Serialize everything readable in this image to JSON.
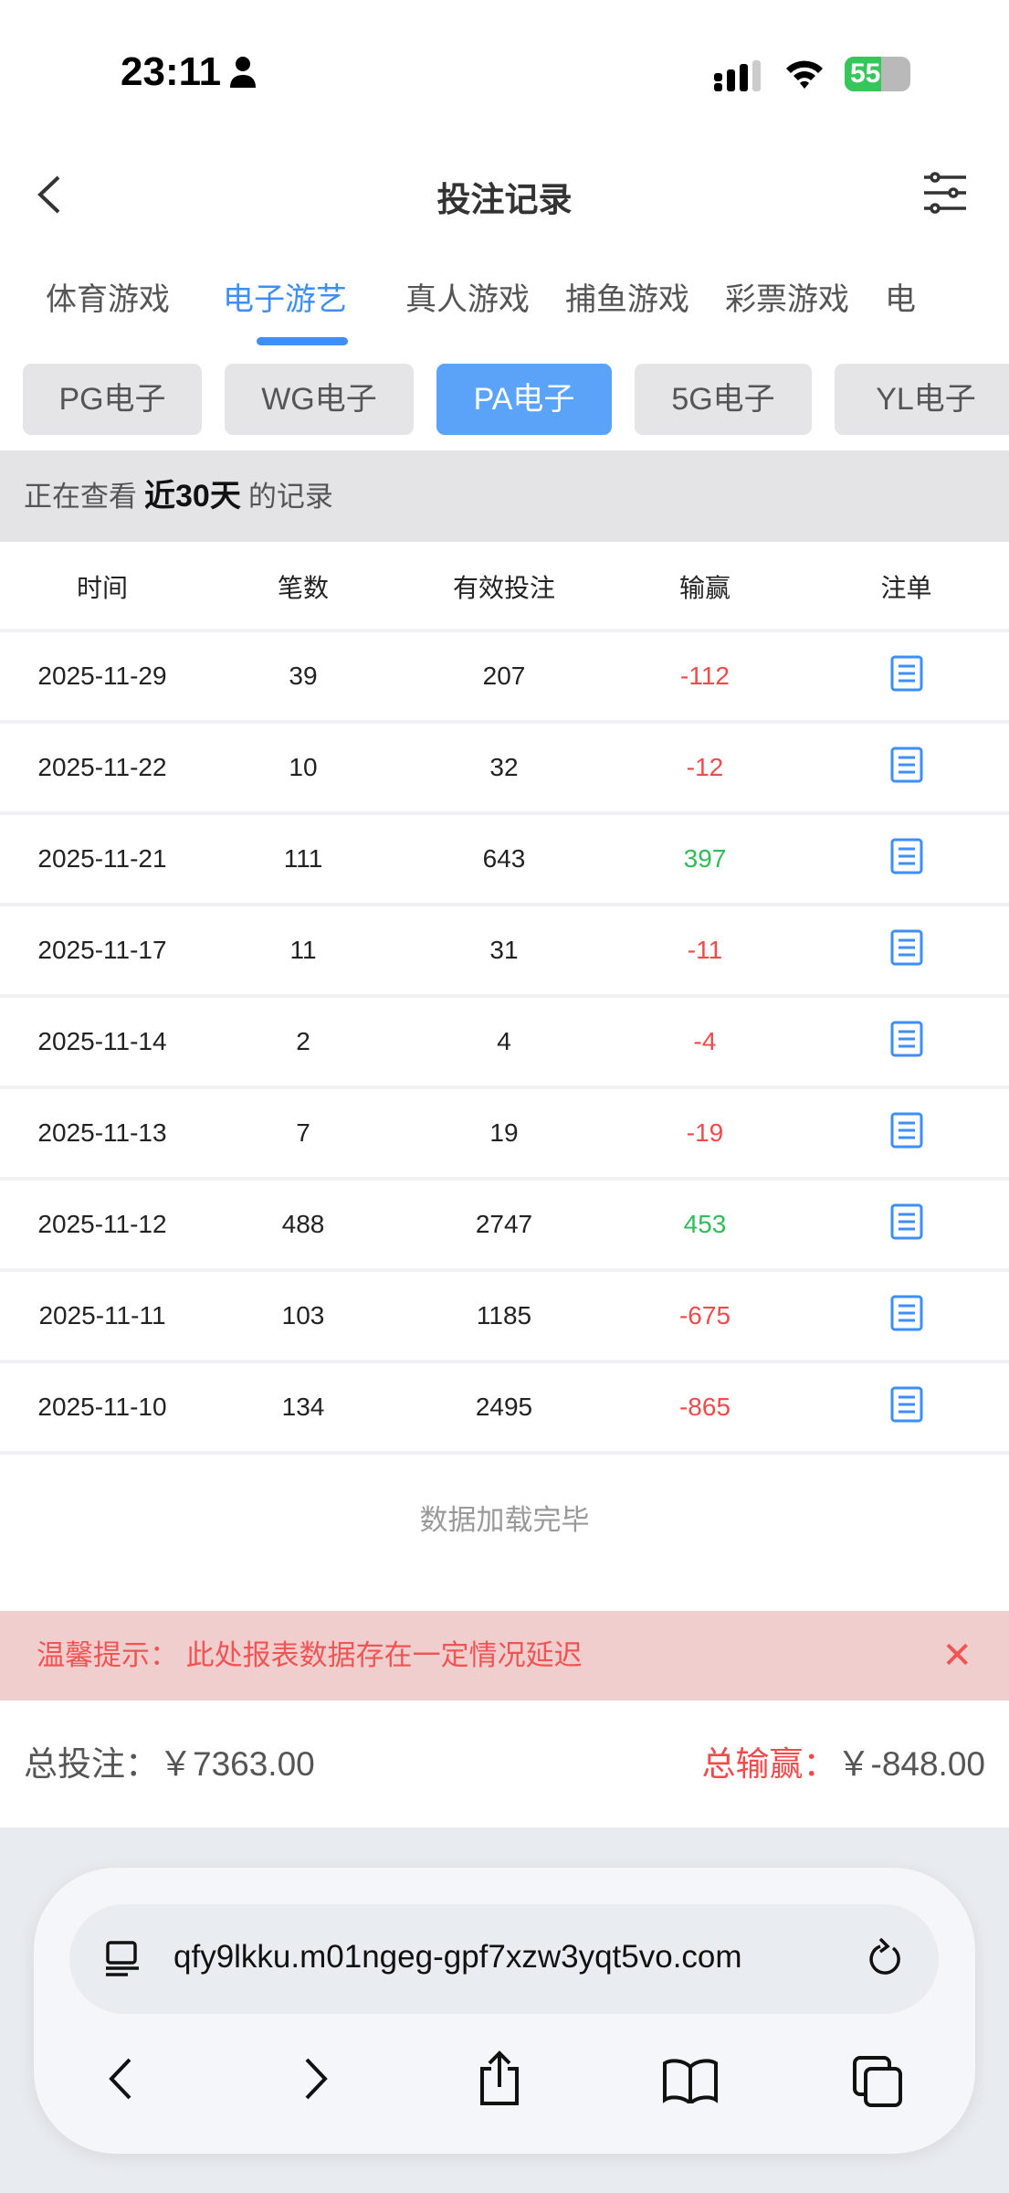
{
  "status_bar": {
    "time": "23:11",
    "battery": "55",
    "battery_level": 55
  },
  "header": {
    "title": "投注记录"
  },
  "tabs": [
    {
      "label": "体育游戏"
    },
    {
      "label": "电子游艺",
      "active": true
    },
    {
      "label": "真人游戏"
    },
    {
      "label": "捕鱼游戏"
    },
    {
      "label": "彩票游戏"
    },
    {
      "label": "电"
    }
  ],
  "chips": [
    {
      "label": "PG电子"
    },
    {
      "label": "WG电子"
    },
    {
      "label": "PA电子",
      "active": true
    },
    {
      "label": "5G电子"
    },
    {
      "label": "YL电子"
    }
  ],
  "range": {
    "prefix": "正在查看",
    "value": "近30天",
    "suffix": "的记录"
  },
  "table": {
    "headers": [
      "时间",
      "笔数",
      "有效投注",
      "输赢",
      "注单"
    ],
    "rows": [
      [
        "2025-11-29",
        "39",
        "207",
        "-112"
      ],
      [
        "2025-11-22",
        "10",
        "32",
        "-12"
      ],
      [
        "2025-11-21",
        "111",
        "643",
        "397"
      ],
      [
        "2025-11-17",
        "11",
        "31",
        "-11"
      ],
      [
        "2025-11-14",
        "2",
        "4",
        "-4"
      ],
      [
        "2025-11-13",
        "7",
        "19",
        "-19"
      ],
      [
        "2025-11-12",
        "488",
        "2747",
        "453"
      ],
      [
        "2025-11-11",
        "103",
        "1185",
        "-675"
      ],
      [
        "2025-11-10",
        "134",
        "2495",
        "-865"
      ]
    ]
  },
  "load_done": "数据加载完毕",
  "warning": {
    "text": "温馨提示：  此处报表数据存在一定情况延迟",
    "close": "✕"
  },
  "totals": {
    "bet_label": "总投注：",
    "bet_value": "￥7363.00",
    "win_label": "总输赢：",
    "win_value": "￥-848.00"
  },
  "browser": {
    "url": "qfy9lkku.m01ngeg-gpf7xzw3yqt5vo.com"
  },
  "colors": {
    "accent": "#3d8ef7",
    "negative": "#f04a4a",
    "positive": "#2ebd59",
    "warning_bg": "#f1cece"
  }
}
